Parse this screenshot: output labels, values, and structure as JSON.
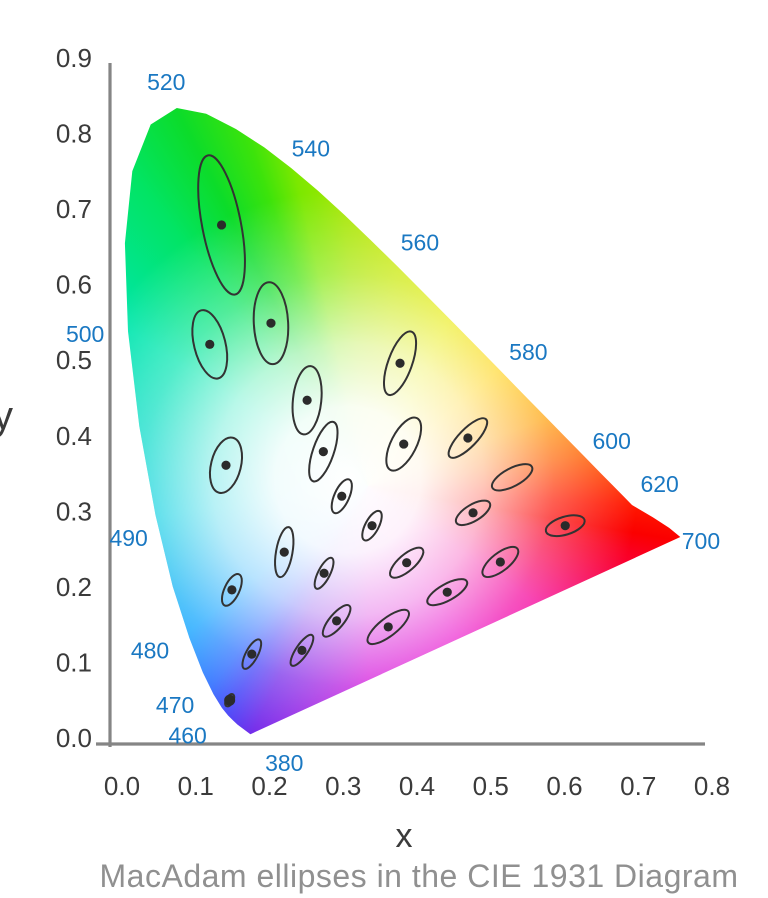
{
  "page": {
    "caption": "MacAdam ellipses in the CIE 1931 Diagram"
  },
  "colors": {
    "background": "#ffffff",
    "wavelength_label": "#1a78c2",
    "tick_label": "#3b3b3b",
    "axis_label": "#3b3b3b",
    "axis_line": "#858585",
    "ellipse_stroke": "#333333",
    "dot_fill": "#2b2b2b",
    "caption": "#909090"
  },
  "chart_data": {
    "type": "scatter",
    "title": "MacAdam ellipses in the CIE 1931 Diagram",
    "xlabel": "x",
    "ylabel": "y",
    "xlim": [
      0.0,
      0.8
    ],
    "ylim": [
      0.0,
      0.9
    ],
    "grid": false,
    "x_ticks": [
      "0.0",
      "0.1",
      "0.2",
      "0.3",
      "0.4",
      "0.5",
      "0.6",
      "0.7",
      "0.8"
    ],
    "y_ticks": [
      "0.0",
      "0.1",
      "0.2",
      "0.3",
      "0.4",
      "0.5",
      "0.6",
      "0.7",
      "0.8",
      "0.9"
    ],
    "wavelength_labels": [
      {
        "label": "520",
        "x": 0.06,
        "y": 0.868
      },
      {
        "label": "540",
        "x": 0.256,
        "y": 0.78
      },
      {
        "label": "560",
        "x": 0.404,
        "y": 0.656
      },
      {
        "label": "580",
        "x": 0.551,
        "y": 0.511
      },
      {
        "label": "600",
        "x": 0.664,
        "y": 0.393
      },
      {
        "label": "620",
        "x": 0.729,
        "y": 0.336
      },
      {
        "label": "700",
        "x": 0.785,
        "y": 0.261
      },
      {
        "label": "500",
        "x": -0.05,
        "y": 0.535
      },
      {
        "label": "490",
        "x": 0.009,
        "y": 0.265
      },
      {
        "label": "480",
        "x": 0.038,
        "y": 0.116
      },
      {
        "label": "470",
        "x": 0.072,
        "y": 0.044
      },
      {
        "label": "460",
        "x": 0.089,
        "y": 0.003
      },
      {
        "label": "380",
        "x": 0.22,
        "y": -0.033
      }
    ],
    "spectral_locus": [
      {
        "nm": 380,
        "x": 0.1741,
        "y": 0.005
      },
      {
        "nm": 450,
        "x": 0.1566,
        "y": 0.0177
      },
      {
        "nm": 455,
        "x": 0.151,
        "y": 0.0227
      },
      {
        "nm": 460,
        "x": 0.144,
        "y": 0.0297
      },
      {
        "nm": 465,
        "x": 0.1355,
        "y": 0.0399
      },
      {
        "nm": 470,
        "x": 0.1241,
        "y": 0.0578
      },
      {
        "nm": 475,
        "x": 0.1096,
        "y": 0.0868
      },
      {
        "nm": 480,
        "x": 0.0913,
        "y": 0.1327
      },
      {
        "nm": 485,
        "x": 0.0687,
        "y": 0.2007
      },
      {
        "nm": 490,
        "x": 0.0454,
        "y": 0.295
      },
      {
        "nm": 495,
        "x": 0.0235,
        "y": 0.4127
      },
      {
        "nm": 500,
        "x": 0.0082,
        "y": 0.5384
      },
      {
        "nm": 505,
        "x": 0.0039,
        "y": 0.6548
      },
      {
        "nm": 510,
        "x": 0.0139,
        "y": 0.7502
      },
      {
        "nm": 515,
        "x": 0.0389,
        "y": 0.812
      },
      {
        "nm": 520,
        "x": 0.0743,
        "y": 0.8338
      },
      {
        "nm": 525,
        "x": 0.1142,
        "y": 0.8262
      },
      {
        "nm": 530,
        "x": 0.1547,
        "y": 0.8059
      },
      {
        "nm": 535,
        "x": 0.1929,
        "y": 0.7816
      },
      {
        "nm": 540,
        "x": 0.2296,
        "y": 0.7543
      },
      {
        "nm": 545,
        "x": 0.2658,
        "y": 0.7243
      },
      {
        "nm": 550,
        "x": 0.3016,
        "y": 0.6923
      },
      {
        "nm": 555,
        "x": 0.3373,
        "y": 0.6588
      },
      {
        "nm": 560,
        "x": 0.3731,
        "y": 0.6245
      },
      {
        "nm": 565,
        "x": 0.4087,
        "y": 0.5896
      },
      {
        "nm": 570,
        "x": 0.4441,
        "y": 0.5547
      },
      {
        "nm": 575,
        "x": 0.4788,
        "y": 0.5202
      },
      {
        "nm": 580,
        "x": 0.5125,
        "y": 0.4866
      },
      {
        "nm": 585,
        "x": 0.5448,
        "y": 0.4544
      },
      {
        "nm": 590,
        "x": 0.5752,
        "y": 0.4242
      },
      {
        "nm": 595,
        "x": 0.6029,
        "y": 0.3965
      },
      {
        "nm": 600,
        "x": 0.627,
        "y": 0.3725
      },
      {
        "nm": 605,
        "x": 0.6482,
        "y": 0.3514
      },
      {
        "nm": 610,
        "x": 0.6658,
        "y": 0.334
      },
      {
        "nm": 615,
        "x": 0.6801,
        "y": 0.3197
      },
      {
        "nm": 620,
        "x": 0.6915,
        "y": 0.3083
      },
      {
        "nm": 630,
        "x": 0.72,
        "y": 0.292
      },
      {
        "nm": 650,
        "x": 0.742,
        "y": 0.278
      },
      {
        "nm": 700,
        "x": 0.757,
        "y": 0.266
      }
    ],
    "macadam_ellipses": [
      {
        "x": 0.135,
        "y": 0.679,
        "a": 0.095,
        "b": 0.026,
        "angle": 101,
        "dot": true
      },
      {
        "x": 0.119,
        "y": 0.521,
        "a": 0.047,
        "b": 0.021,
        "angle": 104,
        "dot": true
      },
      {
        "x": 0.202,
        "y": 0.549,
        "a": 0.055,
        "b": 0.023,
        "angle": 93,
        "dot": true
      },
      {
        "x": 0.251,
        "y": 0.447,
        "a": 0.046,
        "b": 0.019,
        "angle": 84,
        "dot": true
      },
      {
        "x": 0.141,
        "y": 0.361,
        "a": 0.038,
        "b": 0.02,
        "angle": 76,
        "dot": true
      },
      {
        "x": 0.273,
        "y": 0.379,
        "a": 0.042,
        "b": 0.014,
        "angle": 71,
        "dot": true
      },
      {
        "x": 0.377,
        "y": 0.496,
        "a": 0.045,
        "b": 0.016,
        "angle": 70,
        "dot": true
      },
      {
        "x": 0.382,
        "y": 0.389,
        "a": 0.039,
        "b": 0.017,
        "angle": 63,
        "dot": true
      },
      {
        "x": 0.469,
        "y": 0.397,
        "a": 0.035,
        "b": 0.012,
        "angle": 46,
        "dot": true
      },
      {
        "x": 0.529,
        "y": 0.345,
        "a": 0.03,
        "b": 0.012,
        "angle": 28,
        "dot": false
      },
      {
        "x": 0.476,
        "y": 0.298,
        "a": 0.026,
        "b": 0.011,
        "angle": 31,
        "dot": true
      },
      {
        "x": 0.601,
        "y": 0.281,
        "a": 0.027,
        "b": 0.012,
        "angle": 17,
        "dot": true
      },
      {
        "x": 0.513,
        "y": 0.233,
        "a": 0.029,
        "b": 0.012,
        "angle": 38,
        "dot": true
      },
      {
        "x": 0.298,
        "y": 0.32,
        "a": 0.0245,
        "b": 0.01,
        "angle": 66,
        "dot": true
      },
      {
        "x": 0.339,
        "y": 0.281,
        "a": 0.022,
        "b": 0.009,
        "angle": 62,
        "dot": true
      },
      {
        "x": 0.22,
        "y": 0.246,
        "a": 0.034,
        "b": 0.011,
        "angle": 80,
        "dot": true
      },
      {
        "x": 0.274,
        "y": 0.218,
        "a": 0.023,
        "b": 0.008,
        "angle": 63,
        "dot": true
      },
      {
        "x": 0.386,
        "y": 0.232,
        "a": 0.028,
        "b": 0.011,
        "angle": 41,
        "dot": true
      },
      {
        "x": 0.441,
        "y": 0.193,
        "a": 0.03,
        "b": 0.011,
        "angle": 29,
        "dot": true
      },
      {
        "x": 0.149,
        "y": 0.196,
        "a": 0.023,
        "b": 0.01,
        "angle": 65,
        "dot": true
      },
      {
        "x": 0.176,
        "y": 0.111,
        "a": 0.022,
        "b": 0.008,
        "angle": 62,
        "dot": true
      },
      {
        "x": 0.244,
        "y": 0.116,
        "a": 0.0245,
        "b": 0.008,
        "angle": 56,
        "dot": true
      },
      {
        "x": 0.291,
        "y": 0.155,
        "a": 0.0265,
        "b": 0.0095,
        "angle": 50,
        "dot": true
      },
      {
        "x": 0.361,
        "y": 0.147,
        "a": 0.034,
        "b": 0.012,
        "angle": 38,
        "dot": true
      },
      {
        "x": 0.146,
        "y": 0.05,
        "a": 0.009,
        "b": 0.005,
        "angle": 62,
        "dot": true,
        "dot_r": 5.5
      }
    ],
    "gradient": {
      "center": {
        "x": 0.333,
        "y": 0.333
      },
      "white_center": {
        "x": 0.306,
        "y": 0.342
      },
      "white_radius_px": 290,
      "conic_stops": [
        {
          "deg": 0,
          "color": "#b4e600"
        },
        {
          "deg": 8,
          "color": "#c8e800"
        },
        {
          "deg": 26,
          "color": "#e8ea00"
        },
        {
          "deg": 48,
          "color": "#ffd000"
        },
        {
          "deg": 69,
          "color": "#ff9e00"
        },
        {
          "deg": 82,
          "color": "#ff5f00"
        },
        {
          "deg": 90,
          "color": "#ff3000"
        },
        {
          "deg": 94,
          "color": "#ff1800"
        },
        {
          "deg": 100,
          "color": "#fb0000"
        },
        {
          "deg": 104,
          "color": "#fa0020"
        },
        {
          "deg": 125,
          "color": "#f4009a"
        },
        {
          "deg": 150,
          "color": "#e800c8"
        },
        {
          "deg": 180,
          "color": "#cf00d8"
        },
        {
          "deg": 205,
          "color": "#6a1ce8"
        },
        {
          "deg": 212,
          "color": "#3a3af8"
        },
        {
          "deg": 218,
          "color": "#1f62ff"
        },
        {
          "deg": 231,
          "color": "#009cff"
        },
        {
          "deg": 262,
          "color": "#00cde0"
        },
        {
          "deg": 303,
          "color": "#00e6ae"
        },
        {
          "deg": 323,
          "color": "#02e464"
        },
        {
          "deg": 333,
          "color": "#0cdc2a"
        },
        {
          "deg": 341,
          "color": "#3ce30b"
        },
        {
          "deg": 347,
          "color": "#7ce800"
        },
        {
          "deg": 355,
          "color": "#a4e600"
        },
        {
          "deg": 360,
          "color": "#b4e600"
        }
      ]
    }
  }
}
